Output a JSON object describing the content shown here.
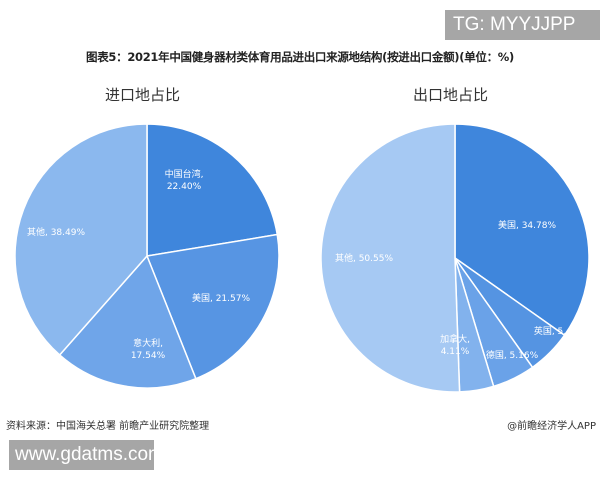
{
  "watermark_top": "TG: MYYJJPP",
  "title": "图表5：2021年中国健身器材类体育用品进出口来源地结构(按进出口金额)(单位：%)",
  "import_title": "进口地占比",
  "export_title": "出口地占比",
  "source": "资料来源：中国海关总署 前瞻产业研究院整理",
  "credit": "@前瞻经济学人APP",
  "watermark_bottom": "www.gdatms.com",
  "chart_data": [
    {
      "type": "pie",
      "title": "进口地占比",
      "categories": [
        "中国台湾",
        "美国",
        "意大利",
        "其他"
      ],
      "values": [
        22.4,
        21.57,
        17.54,
        38.49
      ],
      "labels": [
        "中国台湾,\n22.40%",
        "美国, 21.57%",
        "意大利,\n17.54%",
        "其他, 38.49%"
      ],
      "colors": [
        "#3f86dc",
        "#5795e3",
        "#6fa5e9",
        "#8bb8ee"
      ]
    },
    {
      "type": "pie",
      "title": "出口地占比",
      "categories": [
        "美国",
        "英国",
        "德国",
        "加拿大",
        "其他"
      ],
      "values": [
        34.78,
        5.41,
        5.16,
        4.11,
        50.55
      ],
      "labels": [
        "美国, 34.78%",
        "英国, 5.41%",
        "德国, 5.16%",
        "加拿大,\n4.11%",
        "其他, 50.55%"
      ],
      "colors": [
        "#3f86dc",
        "#5594e2",
        "#6aa2e8",
        "#82b2ed",
        "#a6c9f3"
      ]
    }
  ]
}
